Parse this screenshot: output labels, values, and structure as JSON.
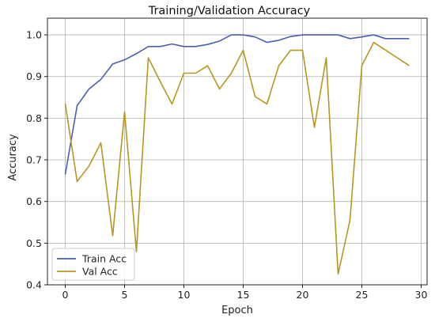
{
  "chart_data": {
    "type": "line",
    "title": "Training/Validation Accuracy",
    "xlabel": "Epoch",
    "ylabel": "Accuracy",
    "xlim": [
      -1.5,
      30.5
    ],
    "ylim": [
      0.4,
      1.04
    ],
    "xticks": [
      0,
      5,
      10,
      15,
      20,
      25,
      30
    ],
    "yticks": [
      0.4,
      0.5,
      0.6,
      0.7,
      0.8,
      0.9,
      1.0
    ],
    "xtick_labels": [
      "0",
      "5",
      "10",
      "15",
      "20",
      "25",
      "30"
    ],
    "ytick_labels": [
      "0.4",
      "0.5",
      "0.6",
      "0.7",
      "0.8",
      "0.9",
      "1.0"
    ],
    "grid": true,
    "legend_position": "lower-left",
    "x": [
      0,
      1,
      2,
      3,
      4,
      5,
      6,
      7,
      8,
      9,
      10,
      11,
      12,
      13,
      14,
      15,
      16,
      17,
      18,
      19,
      20,
      21,
      22,
      23,
      24,
      25,
      26,
      27,
      28,
      29
    ],
    "series": [
      {
        "name": "Train Acc",
        "color": "#4a5fb0",
        "values": [
          0.665,
          0.83,
          0.87,
          0.893,
          0.93,
          0.94,
          0.955,
          0.972,
          0.972,
          0.978,
          0.972,
          0.972,
          0.977,
          0.985,
          1.0,
          1.0,
          0.995,
          0.982,
          0.987,
          0.996,
          1.0,
          1.0,
          1.0,
          1.0,
          0.991,
          0.995,
          1.0,
          0.991,
          0.991,
          0.991
        ]
      },
      {
        "name": "Val Acc",
        "color": "#b8961e",
        "values": [
          0.835,
          0.648,
          0.685,
          0.741,
          0.518,
          0.815,
          0.48,
          0.945,
          0.888,
          0.834,
          0.908,
          0.908,
          0.926,
          0.87,
          0.908,
          0.963,
          0.852,
          0.834,
          0.926,
          0.963,
          0.963,
          0.778,
          0.945,
          0.426,
          0.555,
          0.926,
          0.982,
          null,
          null,
          0.926
        ]
      }
    ]
  }
}
